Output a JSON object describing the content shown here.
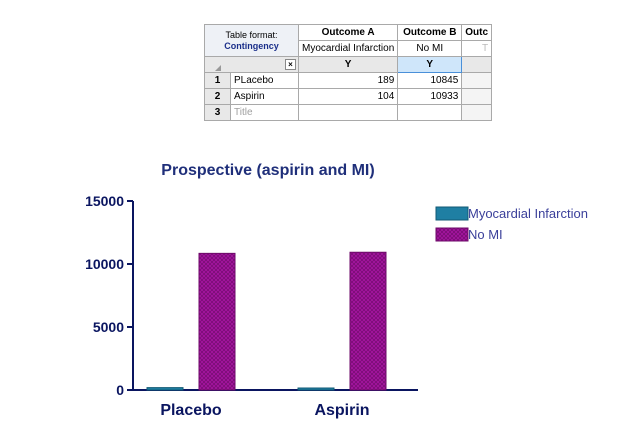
{
  "table": {
    "format_label": "Table format:",
    "format_value": "Contingency",
    "headers": [
      "Outcome A",
      "Outcome B",
      "Outc"
    ],
    "subheaders": [
      "Myocardial Infarction",
      "No MI",
      "T"
    ],
    "column_titles": [
      "Y",
      "Y"
    ],
    "rows": [
      {
        "num": "1",
        "name": "PLacebo",
        "a": "189",
        "b": "10845"
      },
      {
        "num": "2",
        "name": "Aspirin",
        "a": "104",
        "b": "10933"
      },
      {
        "num": "3",
        "name": "Title",
        "a": "",
        "b": ""
      }
    ]
  },
  "chart_data": {
    "type": "bar",
    "title": "Prospective (aspirin and MI)",
    "categories": [
      "Placebo",
      "Aspirin"
    ],
    "series": [
      {
        "name": "Myocardial Infarction",
        "values": [
          189,
          104
        ],
        "color": "#1f7fa3"
      },
      {
        "name": "No MI",
        "values": [
          10845,
          10933
        ],
        "color": "#a3159e"
      }
    ],
    "ylim": [
      0,
      15000
    ],
    "yticks": [
      "0",
      "5000",
      "10000",
      "15000"
    ],
    "xlabel": "",
    "ylabel": "",
    "legend_position": "right",
    "grid": false
  }
}
